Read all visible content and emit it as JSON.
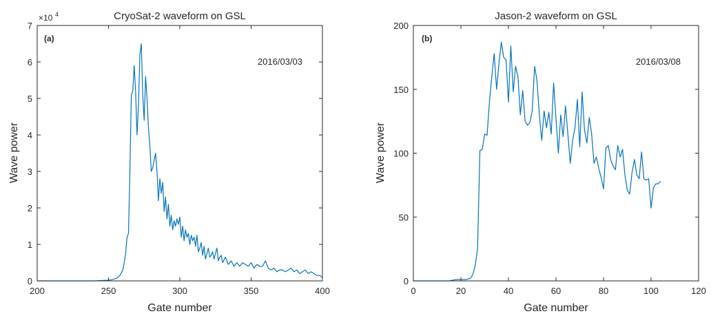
{
  "chart_data": [
    {
      "type": "line",
      "panel_label": "(a)",
      "title": "CryoSat-2 waveform on GSL",
      "xlabel": "Gate number",
      "ylabel": "Wave power",
      "exponent_label": "×10",
      "exponent_power": "4",
      "annotation": "2016/03/03",
      "xlim": [
        200,
        400
      ],
      "ylim": [
        0,
        70000
      ],
      "xticks": [
        200,
        250,
        300,
        350,
        400
      ],
      "xtick_labels": [
        "200",
        "250",
        "300",
        "350",
        "400"
      ],
      "yticks": [
        0,
        10000,
        20000,
        30000,
        40000,
        50000,
        60000,
        70000
      ],
      "ytick_labels": [
        "0",
        "1",
        "2",
        "3",
        "4",
        "5",
        "6",
        "7"
      ],
      "grid": false,
      "line_color": "#0072BD",
      "x": [
        200,
        210,
        220,
        230,
        240,
        250,
        252,
        254,
        256,
        258,
        259,
        260,
        261,
        262,
        263,
        264,
        265,
        266,
        267,
        268,
        269,
        270,
        271,
        272,
        273,
        274,
        275,
        276,
        277,
        278,
        279,
        280,
        281,
        282,
        283,
        284,
        285,
        286,
        287,
        288,
        289,
        290,
        291,
        292,
        293,
        294,
        295,
        296,
        297,
        298,
        299,
        300,
        301,
        302,
        303,
        304,
        305,
        306,
        307,
        308,
        309,
        310,
        311,
        312,
        313,
        314,
        315,
        316,
        317,
        318,
        319,
        320,
        321,
        322,
        323,
        324,
        325,
        326,
        327,
        328,
        329,
        330,
        332,
        334,
        336,
        338,
        340,
        342,
        344,
        346,
        348,
        350,
        352,
        354,
        356,
        358,
        360,
        362,
        364,
        366,
        368,
        370,
        372,
        374,
        376,
        378,
        380,
        382,
        384,
        386,
        388,
        390,
        392,
        394,
        396,
        398,
        400
      ],
      "y": [
        0,
        0,
        0,
        0,
        0,
        200,
        300,
        500,
        800,
        1500,
        2200,
        3000,
        5000,
        7500,
        12000,
        13000,
        30000,
        51000,
        52000,
        59000,
        52000,
        40000,
        48000,
        62000,
        65000,
        51000,
        44000,
        56000,
        50000,
        42000,
        37000,
        30000,
        31000,
        33000,
        35000,
        30000,
        22000,
        28000,
        24000,
        27000,
        19000,
        23000,
        17000,
        21000,
        15000,
        18000,
        14000,
        16500,
        15000,
        17000,
        15500,
        17500,
        12000,
        15000,
        11000,
        14000,
        12000,
        13000,
        10000,
        12500,
        11000,
        12000,
        9500,
        12500,
        8000,
        9000,
        10500,
        7000,
        9500,
        6000,
        7500,
        9000,
        6500,
        7000,
        8000,
        6000,
        7500,
        9000,
        5500,
        6500,
        7000,
        5000,
        6500,
        4500,
        5500,
        4000,
        5000,
        4000,
        5000,
        4500,
        4000,
        5000,
        3500,
        4500,
        4000,
        4000,
        5500,
        3500,
        3000,
        3500,
        2500,
        3000,
        3000,
        2500,
        3000,
        3500,
        2500,
        3000,
        2000,
        2500,
        3000,
        2000,
        2500,
        2000,
        1500,
        1500,
        1000
      ]
    },
    {
      "type": "line",
      "panel_label": "(b)",
      "title": "Jason-2 waveform on GSL",
      "xlabel": "Gate number",
      "ylabel": "Wave power",
      "annotation": "2016/03/08",
      "xlim": [
        0,
        120
      ],
      "ylim": [
        0,
        200
      ],
      "xticks": [
        0,
        20,
        40,
        60,
        80,
        100,
        120
      ],
      "xtick_labels": [
        "0",
        "20",
        "40",
        "60",
        "80",
        "100",
        "120"
      ],
      "yticks": [
        0,
        50,
        100,
        150,
        200
      ],
      "ytick_labels": [
        "0",
        "50",
        "100",
        "150",
        "200"
      ],
      "grid": false,
      "line_color": "#0072BD",
      "x": [
        0,
        5,
        10,
        15,
        18,
        20,
        22,
        24,
        25,
        26,
        27,
        28,
        29,
        30,
        31,
        32,
        33,
        34,
        35,
        36,
        37,
        38,
        39,
        40,
        41,
        42,
        43,
        44,
        45,
        46,
        47,
        48,
        49,
        50,
        51,
        52,
        53,
        54,
        55,
        56,
        57,
        58,
        59,
        60,
        61,
        62,
        63,
        64,
        65,
        66,
        67,
        68,
        69,
        70,
        71,
        72,
        73,
        74,
        75,
        76,
        77,
        78,
        79,
        80,
        81,
        82,
        83,
        84,
        85,
        86,
        87,
        88,
        89,
        90,
        91,
        92,
        93,
        94,
        95,
        96,
        97,
        98,
        99,
        100,
        101,
        102,
        103,
        104
      ],
      "y": [
        0,
        0,
        0,
        0,
        1,
        1,
        1,
        2,
        5,
        12,
        25,
        102,
        103,
        115,
        114,
        140,
        160,
        178,
        150,
        170,
        187,
        175,
        173,
        140,
        184,
        148,
        168,
        160,
        130,
        149,
        125,
        122,
        124,
        133,
        168,
        157,
        130,
        110,
        133,
        120,
        132,
        115,
        155,
        127,
        100,
        130,
        113,
        137,
        115,
        92,
        110,
        120,
        142,
        105,
        148,
        118,
        108,
        128,
        115,
        92,
        97,
        88,
        81,
        72,
        104,
        106,
        95,
        90,
        87,
        106,
        97,
        103,
        83,
        71,
        68,
        85,
        95,
        83,
        80,
        101,
        80,
        79,
        80,
        57,
        73,
        76,
        76,
        78
      ]
    }
  ]
}
